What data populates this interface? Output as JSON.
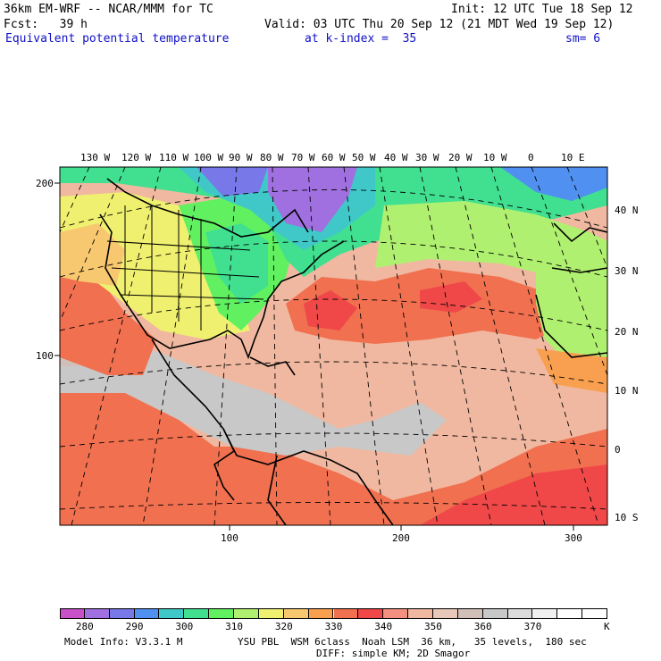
{
  "header": {
    "model": "36km EM-WRF -- NCAR/MMM for TC",
    "init": "Init: 12 UTC Tue 18 Sep 12",
    "fcst": "Fcst:   39 h",
    "valid": "Valid: 03 UTC Thu 20 Sep 12 (21 MDT Wed 19 Sep 12)",
    "field": "Equivalent potential temperature",
    "level": "at k-index =  35",
    "smooth": "sm= 6"
  },
  "axes": {
    "lon_labels": [
      "130 W",
      "120 W",
      "110 W",
      "100 W",
      "90 W",
      "80 W",
      "70 W",
      "60 W",
      "50 W",
      "40 W",
      "30 W",
      "20 W",
      "10 W",
      "0",
      "10 E"
    ],
    "lat_labels": [
      "40 N",
      "30 N",
      "20 N",
      "10 N",
      "0",
      "10 S"
    ],
    "grid_y_labels": [
      "200",
      "100"
    ],
    "grid_x_labels": [
      "100",
      "200",
      "300"
    ]
  },
  "colorbar": {
    "unit": "K",
    "labels": [
      "280",
      "290",
      "300",
      "310",
      "320",
      "330",
      "340",
      "350",
      "360",
      "370"
    ],
    "colors": [
      "#c850c8",
      "#a070e0",
      "#7878e8",
      "#5090f0",
      "#40c8c8",
      "#40e090",
      "#60f060",
      "#b0f070",
      "#f0f070",
      "#f8c870",
      "#f8a050",
      "#f07050",
      "#f04848",
      "#f49080",
      "#f0b8a0",
      "#e8c8b8",
      "#d0c0b8",
      "#c8c8c8",
      "#dcdcdc",
      "#f0f0f0",
      "#ffffff",
      "#ffffff"
    ]
  },
  "footer": {
    "model_info": "Model Info: V3.3.1 M",
    "physics": "YSU PBL  WSM 6class  Noah LSM  36 km,   35 levels,  180 sec",
    "diffusion": "DIFF: simple KM; 2D Smagor"
  }
}
